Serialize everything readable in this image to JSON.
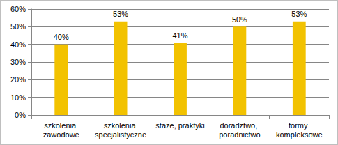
{
  "chart_data": {
    "type": "bar",
    "categories": [
      "szkolenia zawodowe",
      "szkolenia specjalistyczne",
      "staże, praktyki",
      "doradztwo, poradnictwo",
      "formy kompleksowe"
    ],
    "values": [
      40,
      53,
      41,
      50,
      53
    ],
    "value_labels": [
      "40%",
      "53%",
      "41%",
      "50%",
      "53%"
    ],
    "color": "#f2c200",
    "ylim": [
      0,
      60
    ],
    "yticks": [
      {
        "value": 0,
        "label": "0%"
      },
      {
        "value": 10,
        "label": "10%"
      },
      {
        "value": 20,
        "label": "20%"
      },
      {
        "value": 30,
        "label": "30%"
      },
      {
        "value": 40,
        "label": "40%"
      },
      {
        "value": 50,
        "label": "50%"
      },
      {
        "value": 60,
        "label": "60%"
      }
    ],
    "grid": true,
    "data_labels": true
  }
}
